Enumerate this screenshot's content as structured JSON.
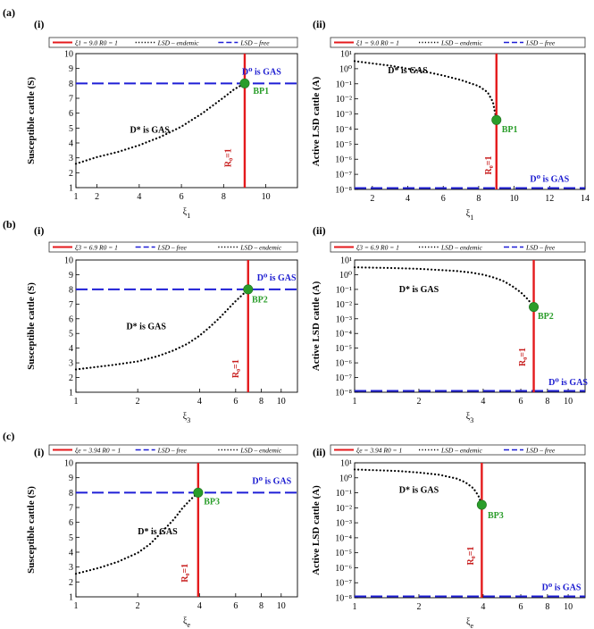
{
  "figure_labels": [
    "(a)",
    "(b)",
    "(c)"
  ],
  "panel_labels": [
    "(i)",
    "(ii)"
  ],
  "colors": {
    "threshold": "#e41a1c",
    "free": "#1f1fd6",
    "endemic": "#000000",
    "bp": "#2a9d2a",
    "stable_label": "#1a1ad0",
    "r0": "#c81e1e",
    "bp_label": "#2a9d2a"
  },
  "chart_data": [
    {
      "id": "a-i",
      "type": "line",
      "xscale": "linear",
      "xlabel": "ξ",
      "xlabel_sub": "1",
      "ylabel": "Susceptible cattle (S)",
      "xlim": [
        1,
        11.5
      ],
      "ylim": [
        1,
        10
      ],
      "xticks": [
        1,
        2,
        4,
        6,
        8,
        10
      ],
      "xtick_labels": [
        "1",
        "2",
        "4",
        "6",
        "8",
        "10"
      ],
      "yticks": [
        1,
        2,
        3,
        4,
        5,
        6,
        7,
        8,
        9,
        10
      ],
      "ytick_labels": [
        "1",
        "2",
        "3",
        "4",
        "5",
        "6",
        "7",
        "8",
        "9",
        "10"
      ],
      "legend": [
        {
          "style": "solid",
          "color": "threshold",
          "text": "ξ1 = 9.0 R0 = 1"
        },
        {
          "style": "dotted",
          "color": "endemic",
          "text": "LSD – endemic"
        },
        {
          "style": "dashed",
          "color": "free",
          "text": "LSD – free"
        }
      ],
      "threshold_x": 9.0,
      "free_level": 8,
      "endemic_x": [
        1.0,
        2.0,
        3.0,
        4.0,
        5.0,
        6.0,
        7.0,
        8.0,
        8.5,
        9.0
      ],
      "endemic_y": [
        2.6,
        3.05,
        3.4,
        3.85,
        4.4,
        5.1,
        6.0,
        7.05,
        7.6,
        8.0
      ],
      "bp": {
        "x": 9.0,
        "y": 8.0,
        "label": "BP1"
      },
      "annotations": {
        "free_stable": "D⁰ is GAS",
        "endemic_stable": "D* is GAS",
        "r0": "R₀=1"
      },
      "ann_pos": {
        "free": [
          9.8,
          8.6
        ],
        "endemic": [
          4.5,
          4.7
        ],
        "r0": [
          8.35,
          3.0
        ],
        "bp": [
          9.4,
          7.3
        ]
      }
    },
    {
      "id": "a-ii",
      "type": "line",
      "xscale": "linear",
      "yscale": "log",
      "xlabel": "ξ",
      "xlabel_sub": "1",
      "ylabel": "Active LSD cattle (A)",
      "xlim": [
        1,
        14
      ],
      "ylim": [
        -8,
        1
      ],
      "xticks": [
        2,
        4,
        6,
        8,
        10,
        12,
        14
      ],
      "xtick_labels": [
        "2",
        "4",
        "6",
        "8",
        "10",
        "12",
        "14"
      ],
      "yticks": [
        -8,
        -7,
        -6,
        -5,
        -4,
        -3,
        -2,
        -1,
        0,
        1
      ],
      "ytick_labels": [
        "10⁻⁸",
        "10⁻⁷",
        "10⁻⁶",
        "10⁻⁵",
        "10⁻⁴",
        "10⁻³",
        "10⁻²",
        "10⁻¹",
        "10⁰",
        "10¹"
      ],
      "legend": [
        {
          "style": "solid",
          "color": "threshold",
          "text": "ξ1 = 9.0 R0 = 1"
        },
        {
          "style": "dotted",
          "color": "endemic",
          "text": "LSD – endemic"
        },
        {
          "style": "dashed",
          "color": "free",
          "text": "LSD – free"
        }
      ],
      "threshold_x": 9.0,
      "free_level": -8,
      "endemic_x": [
        1.0,
        2.0,
        3.0,
        4.0,
        5.0,
        6.0,
        7.0,
        8.0,
        8.5,
        8.8,
        9.0
      ],
      "endemic_y": [
        0.5,
        0.35,
        0.2,
        0.0,
        -0.2,
        -0.45,
        -0.75,
        -1.15,
        -1.55,
        -2.2,
        -3.4
      ],
      "bp": {
        "x": 9.0,
        "y": -3.4,
        "label": "BP1"
      },
      "annotations": {
        "free_stable": "D⁰ is GAS",
        "endemic_stable": "D* is GAS",
        "r0": "R₀=1"
      },
      "ann_pos": {
        "free": [
          12.0,
          -7.5
        ],
        "endemic": [
          4.0,
          -0.3
        ],
        "r0": [
          8.7,
          -6.4
        ],
        "bp": [
          9.3,
          -4.2
        ]
      }
    },
    {
      "id": "b-i",
      "type": "line",
      "xscale": "log",
      "xlabel": "ξ",
      "xlabel_sub": "3",
      "ylabel": "Susceptible cattle (S)",
      "xlim": [
        1,
        12
      ],
      "ylim": [
        1,
        10
      ],
      "xticks": [
        1,
        2,
        4,
        6,
        8,
        10
      ],
      "xtick_labels": [
        "1",
        "2",
        "4",
        "6",
        "8",
        "10"
      ],
      "yticks": [
        1,
        2,
        3,
        4,
        5,
        6,
        7,
        8,
        9,
        10
      ],
      "ytick_labels": [
        "1",
        "2",
        "3",
        "4",
        "5",
        "6",
        "7",
        "8",
        "9",
        "10"
      ],
      "legend": [
        {
          "style": "solid",
          "color": "threshold",
          "text": "ξ3 = 6.9 R0 = 1"
        },
        {
          "style": "dashed",
          "color": "free",
          "text": "LSD – free"
        },
        {
          "style": "dotted",
          "color": "endemic",
          "text": "LSD – endemic"
        }
      ],
      "threshold_x": 6.9,
      "free_level": 8,
      "endemic_x": [
        1.0,
        1.5,
        2.0,
        2.5,
        3.0,
        3.5,
        4.0,
        4.5,
        5.0,
        5.5,
        6.0,
        6.5,
        6.9
      ],
      "endemic_y": [
        2.55,
        2.85,
        3.1,
        3.45,
        3.85,
        4.3,
        4.85,
        5.45,
        6.05,
        6.65,
        7.2,
        7.65,
        8.0
      ],
      "bp": {
        "x": 6.9,
        "y": 8.0,
        "label": "BP2"
      },
      "annotations": {
        "free_stable": "D⁰ is GAS",
        "endemic_stable": "D* is GAS",
        "r0": "R₀=1"
      },
      "ann_pos": {
        "free": [
          9.5,
          8.6
        ],
        "endemic": [
          2.2,
          5.3
        ],
        "r0": [
          6.2,
          2.6
        ],
        "bp": [
          7.2,
          7.1
        ]
      }
    },
    {
      "id": "b-ii",
      "type": "line",
      "xscale": "log",
      "yscale": "log",
      "xlabel": "ξ",
      "xlabel_sub": "3",
      "ylabel": "Active LSD cattle (A)",
      "xlim": [
        1,
        12
      ],
      "ylim": [
        -8,
        1
      ],
      "xticks": [
        1,
        2,
        4,
        6,
        8,
        10
      ],
      "xtick_labels": [
        "1",
        "2",
        "4",
        "6",
        "8",
        "10"
      ],
      "yticks": [
        -8,
        -7,
        -6,
        -5,
        -4,
        -3,
        -2,
        -1,
        0,
        1
      ],
      "ytick_labels": [
        "10⁻⁸",
        "10⁻⁷",
        "10⁻⁶",
        "10⁻⁵",
        "10⁻⁴",
        "10⁻³",
        "10⁻²",
        "10⁻¹",
        "10⁰",
        "10¹"
      ],
      "legend": [
        {
          "style": "solid",
          "color": "threshold",
          "text": "ξ3 = 6.9 R0 = 1"
        },
        {
          "style": "dotted",
          "color": "endemic",
          "text": "LSD – endemic"
        },
        {
          "style": "dashed",
          "color": "free",
          "text": "LSD – free"
        }
      ],
      "threshold_x": 6.9,
      "free_level": -8,
      "endemic_x": [
        1.0,
        1.5,
        2.0,
        2.5,
        3.0,
        3.5,
        4.0,
        4.5,
        5.0,
        5.5,
        6.0,
        6.5,
        6.9
      ],
      "endemic_y": [
        0.5,
        0.45,
        0.4,
        0.32,
        0.25,
        0.15,
        0.0,
        -0.2,
        -0.45,
        -0.8,
        -1.2,
        -1.7,
        -2.2
      ],
      "bp": {
        "x": 6.9,
        "y": -2.2,
        "label": "BP2"
      },
      "annotations": {
        "free_stable": "D⁰ is GAS",
        "endemic_stable": "D* is GAS",
        "r0": "R₀=1"
      },
      "ann_pos": {
        "free": [
          10.0,
          -7.5
        ],
        "endemic": [
          2.0,
          -1.2
        ],
        "r0": [
          6.3,
          -5.6
        ],
        "bp": [
          7.2,
          -3.0
        ]
      }
    },
    {
      "id": "c-i",
      "type": "line",
      "xscale": "log",
      "xlabel": "ξ",
      "xlabel_sub": "e",
      "ylabel": "Susceptible cattle (S)",
      "xlim": [
        1,
        12
      ],
      "ylim": [
        1,
        10
      ],
      "xticks": [
        1,
        2,
        4,
        6,
        8,
        10
      ],
      "xtick_labels": [
        "1",
        "2",
        "4",
        "6",
        "8",
        "10"
      ],
      "yticks": [
        1,
        2,
        3,
        4,
        5,
        6,
        7,
        8,
        9,
        10
      ],
      "ytick_labels": [
        "1",
        "2",
        "3",
        "4",
        "5",
        "6",
        "7",
        "8",
        "9",
        "10"
      ],
      "legend": [
        {
          "style": "solid",
          "color": "threshold",
          "text": "ξe = 3.94 R0 = 1"
        },
        {
          "style": "dashed",
          "color": "free",
          "text": "LSD – free"
        },
        {
          "style": "dotted",
          "color": "endemic",
          "text": "LSD – endemic"
        }
      ],
      "threshold_x": 3.94,
      "free_level": 8,
      "endemic_x": [
        1.0,
        1.3,
        1.6,
        2.0,
        2.3,
        2.6,
        3.0,
        3.3,
        3.6,
        3.94
      ],
      "endemic_y": [
        2.55,
        2.95,
        3.35,
        3.95,
        4.55,
        5.3,
        6.2,
        6.95,
        7.5,
        8.0
      ],
      "bp": {
        "x": 3.94,
        "y": 8.0,
        "label": "BP3"
      },
      "annotations": {
        "free_stable": "D⁰ is GAS",
        "endemic_stable": "D* is GAS",
        "r0": "R₀=1"
      },
      "ann_pos": {
        "free": [
          9.0,
          8.6
        ],
        "endemic": [
          2.5,
          5.2
        ],
        "r0": [
          3.5,
          2.6
        ],
        "bp": [
          4.2,
          7.2
        ]
      }
    },
    {
      "id": "c-ii",
      "type": "line",
      "xscale": "log",
      "yscale": "log",
      "xlabel": "ξ",
      "xlabel_sub": "e",
      "ylabel": "Active LSD cattle (A)",
      "xlim": [
        1,
        12
      ],
      "ylim": [
        -8,
        1
      ],
      "xticks": [
        1,
        2,
        4,
        6,
        8,
        10
      ],
      "xtick_labels": [
        "1",
        "2",
        "4",
        "6",
        "8",
        "10"
      ],
      "yticks": [
        -8,
        -7,
        -6,
        -5,
        -4,
        -3,
        -2,
        -1,
        0,
        1
      ],
      "ytick_labels": [
        "10⁻⁸",
        "10⁻⁷",
        "10⁻⁶",
        "10⁻⁵",
        "10⁻⁴",
        "10⁻³",
        "10⁻²",
        "10⁻¹",
        "10⁰",
        "10¹"
      ],
      "legend": [
        {
          "style": "solid",
          "color": "threshold",
          "text": "ξe = 3.94 R0 = 1"
        },
        {
          "style": "dotted",
          "color": "endemic",
          "text": "LSD – endemic"
        },
        {
          "style": "dashed",
          "color": "free",
          "text": "LSD – free"
        }
      ],
      "threshold_x": 3.94,
      "free_level": -8,
      "endemic_x": [
        1.0,
        1.3,
        1.6,
        2.0,
        2.5,
        3.0,
        3.3,
        3.6,
        3.8,
        3.94
      ],
      "endemic_y": [
        0.55,
        0.5,
        0.45,
        0.35,
        0.2,
        -0.05,
        -0.3,
        -0.7,
        -1.2,
        -1.8
      ],
      "bp": {
        "x": 3.94,
        "y": -1.8,
        "label": "BP3"
      },
      "annotations": {
        "free_stable": "D⁰ is GAS",
        "endemic_stable": "D* is GAS",
        "r0": "R₀=1"
      },
      "ann_pos": {
        "free": [
          9.3,
          -7.5
        ],
        "endemic": [
          2.0,
          -1.0
        ],
        "r0": [
          3.6,
          -5.2
        ],
        "bp": [
          4.2,
          -2.7
        ]
      }
    }
  ]
}
